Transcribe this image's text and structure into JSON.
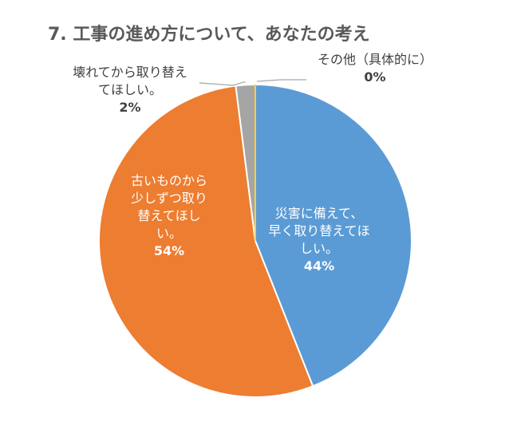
{
  "chart_data": {
    "type": "pie",
    "title": "7. 工事の進め方について、あなたの考え",
    "slices": [
      {
        "label_lines": [
          "災害に備えて、",
          "早く取り替えてほ",
          "しい。"
        ],
        "value": 44,
        "value_label": "44%",
        "color": "#5B9BD5"
      },
      {
        "label_lines": [
          "古いものから",
          "少しずつ取り",
          "替えてほし",
          "い。"
        ],
        "value": 54,
        "value_label": "54%",
        "color": "#ED7D31"
      },
      {
        "label_lines": [
          "壊れてから取り替え",
          "てほしい。"
        ],
        "value": 2,
        "value_label": "2%",
        "color": "#A5A5A5"
      },
      {
        "label_lines": [
          "その他（具体的に）"
        ],
        "value": 0,
        "value_label": "0%",
        "color": "#FFC000"
      }
    ],
    "start_angle_deg": 0,
    "direction": "clockwise"
  }
}
